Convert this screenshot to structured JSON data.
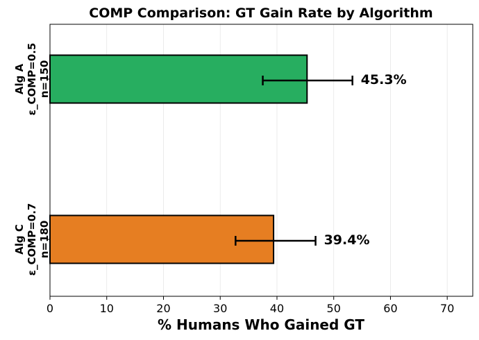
{
  "chart_data": {
    "type": "bar",
    "orientation": "horizontal",
    "title": "COMP Comparison: GT Gain Rate by Algorithm",
    "xlabel": "% Humans Who Gained GT",
    "ylabel": "",
    "xlim": [
      0,
      74.5
    ],
    "xticks": [
      0,
      10,
      20,
      30,
      40,
      50,
      60,
      70
    ],
    "grid": "x",
    "categories": [
      {
        "lines": [
          "Alg A",
          "ε_COMP=0.5",
          "n=150"
        ]
      },
      {
        "lines": [
          "Alg C",
          "ε_COMP=0.7",
          "n=180"
        ]
      }
    ],
    "values": [
      45.3,
      39.4
    ],
    "value_labels": [
      "45.3%",
      "39.4%"
    ],
    "error_low": [
      37.5,
      32.7
    ],
    "error_high": [
      53.3,
      46.8
    ],
    "colors": [
      "#27ae60",
      "#e67e22"
    ]
  }
}
